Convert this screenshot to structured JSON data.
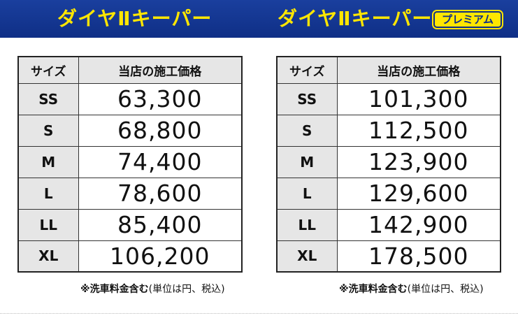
{
  "header": {
    "left_title": "ダイヤⅡキーパー",
    "right_title": "ダイヤⅡキーパー",
    "premium_badge": "プレミアム"
  },
  "tables": {
    "standard": {
      "col_size": "サイズ",
      "col_price": "当店の施工価格",
      "rows": [
        {
          "size": "SS",
          "price": "63,300"
        },
        {
          "size": "S",
          "price": "68,800"
        },
        {
          "size": "M",
          "price": "74,400"
        },
        {
          "size": "L",
          "price": "78,600"
        },
        {
          "size": "LL",
          "price": "85,400"
        },
        {
          "size": "XL",
          "price": "106,200"
        }
      ]
    },
    "premium": {
      "col_size": "サイズ",
      "col_price": "当店の施工価格",
      "rows": [
        {
          "size": "SS",
          "price": "101,300"
        },
        {
          "size": "S",
          "price": "112,500"
        },
        {
          "size": "M",
          "price": "123,900"
        },
        {
          "size": "L",
          "price": "129,600"
        },
        {
          "size": "LL",
          "price": "142,900"
        },
        {
          "size": "XL",
          "price": "178,500"
        }
      ]
    }
  },
  "notes": {
    "left_bold": "※洗車料金含む",
    "left_rest": "(単位は円、税込)",
    "right_bold": "※洗車料金含む",
    "right_rest": "(単位は円、税込)"
  },
  "colors": {
    "banner": "#0f2f86",
    "title": "#ffe600",
    "header_cell": "#e6e6e6"
  }
}
